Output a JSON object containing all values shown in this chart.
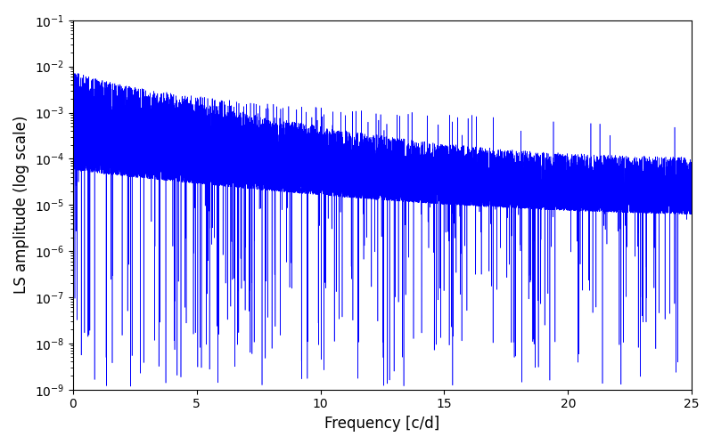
{
  "title": "",
  "xlabel": "Frequency [c/d]",
  "ylabel": "LS amplitude (log scale)",
  "xlim": [
    0,
    25
  ],
  "ylim": [
    1e-09,
    0.1
  ],
  "color": "#0000ff",
  "linewidth": 0.4,
  "freq_min": 0.0,
  "freq_max": 25.0,
  "n_points": 15000,
  "seed": 137,
  "background_color": "#ffffff",
  "figsize": [
    8.0,
    5.0
  ],
  "dpi": 100
}
